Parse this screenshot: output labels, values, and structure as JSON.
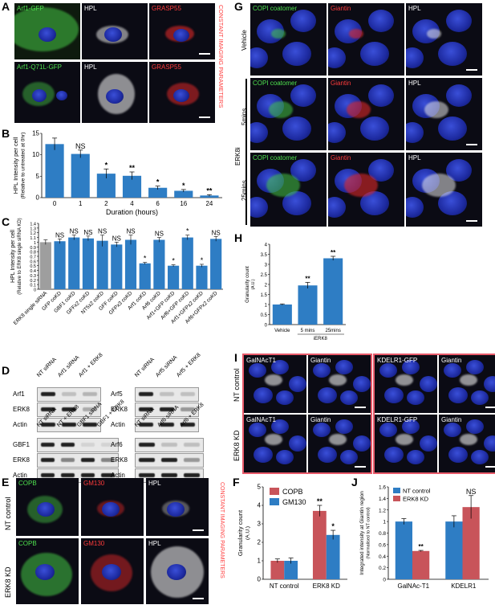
{
  "panels": {
    "A": {
      "label": "A",
      "row1": [
        "Arf1-GFP",
        "HPL",
        "GRASP55"
      ],
      "row2": [
        "Arf1-Q71L-GFP",
        "HPL",
        "GRASP55"
      ],
      "side_note": "CONSTANT IMAGING PARAMETERS"
    },
    "B": {
      "label": "B",
      "ylabel": "HPL Intensity per cell (Relative to untreated at 0hr)",
      "xlabel": "Duration (hours)"
    },
    "C": {
      "label": "C",
      "ylabel": "HPL Intensity per cell (Relative to ERK8 single siRNA KD)"
    },
    "D": {
      "label": "D",
      "blot1": {
        "cols": [
          "NT siRNA",
          "Arf1 siRNA",
          "Arf1 + ERK8"
        ],
        "rows": [
          "Arf1",
          "ERK8",
          "Actin"
        ]
      },
      "blot2": {
        "cols": [
          "NT siRNA",
          "Arf5 siRNA",
          "Arf5 + ERK8"
        ],
        "rows": [
          "Arf5",
          "ERK8",
          "Actin"
        ]
      },
      "blot3": {
        "cols": [
          "NT siRNA",
          "NT + ERK8",
          "GBF1 siRNA",
          "GBF1 + ERK8"
        ],
        "rows": [
          "GBF1",
          "ERK8",
          "Actin"
        ]
      },
      "blot4": {
        "cols": [
          "NT siRNA",
          "Arf6 siRNA",
          "Arf6 + ERK8"
        ],
        "rows": [
          "Arf6",
          "ERK8",
          "Actin"
        ]
      }
    },
    "E": {
      "label": "E",
      "cols": [
        "COPB",
        "GM130",
        "HPL"
      ],
      "rows": [
        "NT control",
        "ERK8 KD"
      ],
      "side_note": "CONSTANT IMAGING PARAMETERS"
    },
    "F": {
      "label": "F",
      "ylabel": "Granularity count (A.U.) (Relative to NT control)"
    },
    "G": {
      "label": "G",
      "row_labels": [
        "Vehicle",
        "5mins",
        "25mins"
      ],
      "group_label": "ERK8i",
      "cols": [
        "COPI coatomer",
        "Giantin",
        "HPL"
      ]
    },
    "H": {
      "label": "H",
      "ylabel": "Granularity count (A.U.) (Normalised to Vehicle)",
      "group_label": "iERK8"
    },
    "I": {
      "label": "I",
      "cols_left": [
        "GalNAcT1",
        "Giantin"
      ],
      "cols_right": [
        "KDELR1-GFP",
        "Giantin"
      ],
      "rows": [
        "NT control",
        "ERK8 KD"
      ]
    },
    "J": {
      "label": "J",
      "ylabel": "Integrated intensity at Giantin region (Normalised to NT control)"
    }
  },
  "chart_data": [
    {
      "id": "B",
      "type": "bar",
      "title": "",
      "xlabel": "Duration (hours)",
      "ylabel": "HPL Intensity per cell (Relative to untreated at 0hr)",
      "categories": [
        "0",
        "1",
        "2",
        "4",
        "6",
        "16",
        "24"
      ],
      "values": [
        12.5,
        10.2,
        5.6,
        5.1,
        2.3,
        1.6,
        0.5
      ],
      "errors": [
        1.4,
        0.9,
        1.1,
        0.9,
        0.4,
        0.3,
        0.2
      ],
      "annotations": [
        "",
        "NS",
        "*",
        "**",
        "*",
        "*",
        "**"
      ],
      "ylim": [
        0,
        15
      ],
      "yticks": [
        0,
        5,
        10,
        15
      ],
      "color": "#2e7dc4"
    },
    {
      "id": "C",
      "type": "bar",
      "title": "",
      "ylabel": "HPL Intensity per cell (Relative to ERK8 single siRNA KD)",
      "categories": [
        "ERK8 single siRNA",
        "GFP coKD",
        "GBF1 coKD",
        "GFFx2 coKD",
        "NT5x2 coKD",
        "GFF coKD",
        "GFPx3 coKD",
        "Arf1 coKD",
        "Arf6 coKD",
        "Arf1+GFP coKD",
        "Arf6+GFP coKD",
        "Arf1+GFPx2 coKD",
        "Arf6+GFPx2 coKD"
      ],
      "values": [
        1.0,
        1.02,
        1.1,
        1.08,
        1.03,
        0.95,
        1.05,
        0.55,
        1.05,
        0.5,
        1.1,
        0.5,
        1.07
      ],
      "errors": [
        0.05,
        0.05,
        0.05,
        0.05,
        0.12,
        0.05,
        0.1,
        0.02,
        0.05,
        0.02,
        0.05,
        0.03,
        0.05
      ],
      "annotations": [
        "",
        "NS",
        "NS",
        "NS",
        "NS",
        "NS",
        "NS",
        "*",
        "NS",
        "*",
        "*",
        "*",
        "NS"
      ],
      "ylim": [
        0,
        1.4
      ],
      "yticks": [
        0,
        0.1,
        0.2,
        0.3,
        0.4,
        0.5,
        0.6,
        0.7,
        0.8,
        0.9,
        1,
        1.1,
        1.2,
        1.3,
        1.4
      ],
      "colors": [
        "#9e9e9e",
        "#2e7dc4"
      ]
    },
    {
      "id": "F",
      "type": "bar",
      "title": "",
      "ylabel": "Granularity count (A.U.) (Relative to NT control)",
      "categories": [
        "NT control",
        "ERK8 KD"
      ],
      "series": [
        {
          "name": "COPB",
          "values": [
            1.0,
            3.7
          ],
          "errors": [
            0.1,
            0.3
          ],
          "color": "#c8545a"
        },
        {
          "name": "GM130",
          "values": [
            1.0,
            2.4
          ],
          "errors": [
            0.15,
            0.25
          ],
          "color": "#2e7dc4"
        }
      ],
      "annotations": [
        [
          "",
          ""
        ],
        [
          "**",
          "*"
        ]
      ],
      "ylim": [
        0,
        5
      ],
      "yticks": [
        0,
        1,
        2,
        3,
        4,
        5
      ],
      "legend": "top-left"
    },
    {
      "id": "H",
      "type": "bar",
      "title": "",
      "ylabel": "Granularity count (A.U.) (Normalised to Vehicle)",
      "categories": [
        "Vehicle",
        "5 mins",
        "25mins"
      ],
      "group_label": "iERK8",
      "values": [
        1.0,
        1.95,
        3.3
      ],
      "errors": [
        0.03,
        0.15,
        0.1
      ],
      "annotations": [
        "",
        "**",
        "**"
      ],
      "ylim": [
        0,
        4
      ],
      "yticks": [
        0,
        0.5,
        1,
        1.5,
        2,
        2.5,
        3,
        3.5,
        4
      ],
      "color": "#2e7dc4"
    },
    {
      "id": "J",
      "type": "bar",
      "title": "",
      "ylabel": "Integrated intensity at Giantin region (Normalised to NT control)",
      "categories": [
        "GalNAc-T1",
        "KDELR1"
      ],
      "series": [
        {
          "name": "NT control",
          "values": [
            1.0,
            1.0
          ],
          "errors": [
            0.05,
            0.1
          ],
          "color": "#2e7dc4"
        },
        {
          "name": "ERK8 KD",
          "values": [
            0.49,
            1.25
          ],
          "errors": [
            0.01,
            0.2
          ],
          "color": "#c8545a"
        }
      ],
      "annotations": [
        [
          "",
          "**"
        ],
        [
          "",
          "NS"
        ]
      ],
      "ylim": [
        0,
        1.6
      ],
      "yticks": [
        0,
        0.2,
        0.4,
        0.6,
        0.8,
        1,
        1.2,
        1.4,
        1.6
      ],
      "legend": "top-left"
    }
  ]
}
